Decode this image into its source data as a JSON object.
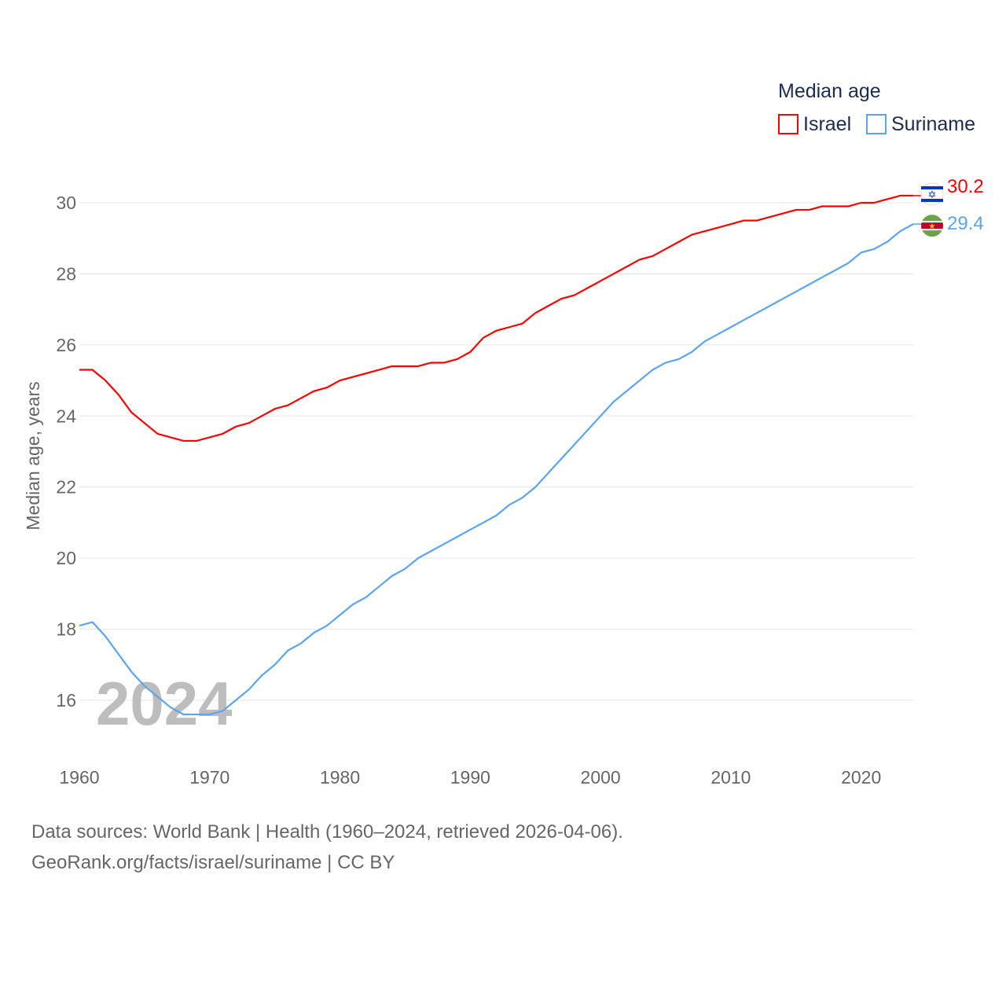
{
  "chart_data": {
    "type": "line",
    "title": "Median age",
    "xlabel": "",
    "ylabel": "Median age, years",
    "watermark_year": "2024",
    "xlim": [
      1960,
      2024
    ],
    "ylim": [
      15,
      30.5
    ],
    "x_ticks": [
      1960,
      1970,
      1980,
      1990,
      2000,
      2010,
      2020
    ],
    "y_ticks": [
      16,
      18,
      20,
      22,
      24,
      26,
      28,
      30
    ],
    "grid": true,
    "legend_position": "top-right",
    "x": [
      1960,
      1961,
      1962,
      1963,
      1964,
      1965,
      1966,
      1967,
      1968,
      1969,
      1970,
      1971,
      1972,
      1973,
      1974,
      1975,
      1976,
      1977,
      1978,
      1979,
      1980,
      1981,
      1982,
      1983,
      1984,
      1985,
      1986,
      1987,
      1988,
      1989,
      1990,
      1991,
      1992,
      1993,
      1994,
      1995,
      1996,
      1997,
      1998,
      1999,
      2000,
      2001,
      2002,
      2003,
      2004,
      2005,
      2006,
      2007,
      2008,
      2009,
      2010,
      2011,
      2012,
      2013,
      2014,
      2015,
      2016,
      2017,
      2018,
      2019,
      2020,
      2021,
      2022,
      2023,
      2024
    ],
    "series": [
      {
        "name": "Israel",
        "color": "#ff0000",
        "end_label": "30.2",
        "values": [
          25.3,
          25.3,
          25.0,
          24.6,
          24.1,
          23.8,
          23.5,
          23.4,
          23.3,
          23.3,
          23.4,
          23.5,
          23.7,
          23.8,
          24.0,
          24.2,
          24.3,
          24.5,
          24.7,
          24.8,
          25.0,
          25.1,
          25.2,
          25.3,
          25.4,
          25.4,
          25.4,
          25.5,
          25.5,
          25.6,
          25.8,
          26.2,
          26.4,
          26.5,
          26.6,
          26.9,
          27.1,
          27.3,
          27.4,
          27.6,
          27.8,
          28.0,
          28.2,
          28.4,
          28.5,
          28.7,
          28.9,
          29.1,
          29.2,
          29.3,
          29.4,
          29.5,
          29.5,
          29.6,
          29.7,
          29.8,
          29.8,
          29.9,
          29.9,
          29.9,
          30.0,
          30.0,
          30.1,
          30.2,
          30.2
        ]
      },
      {
        "name": "Suriname",
        "color": "#5ba4ee",
        "end_label": "29.4",
        "values": [
          18.1,
          18.2,
          17.8,
          17.3,
          16.8,
          16.4,
          16.1,
          15.8,
          15.6,
          15.6,
          15.6,
          15.7,
          16.0,
          16.3,
          16.7,
          17.0,
          17.4,
          17.6,
          17.9,
          18.1,
          18.4,
          18.7,
          18.9,
          19.2,
          19.5,
          19.7,
          20.0,
          20.2,
          20.4,
          20.6,
          20.8,
          21.0,
          21.2,
          21.5,
          21.7,
          22.0,
          22.4,
          22.8,
          23.2,
          23.6,
          24.0,
          24.4,
          24.7,
          25.0,
          25.3,
          25.5,
          25.6,
          25.8,
          26.1,
          26.3,
          26.5,
          26.7,
          26.9,
          27.1,
          27.3,
          27.5,
          27.7,
          27.9,
          28.1,
          28.3,
          28.6,
          28.7,
          28.9,
          29.2,
          29.4
        ]
      }
    ]
  },
  "footer": {
    "line1": "Data sources: World Bank | Health (1960–2024, retrieved 2026-04-06).",
    "line2": "GeoRank.org/facts/israel/suriname | CC BY"
  }
}
